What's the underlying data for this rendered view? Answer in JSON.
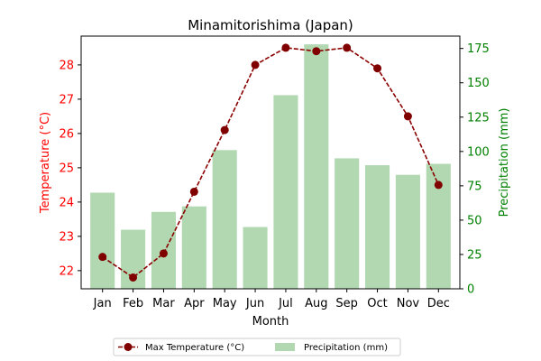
{
  "chart_data": {
    "type": "bar+line",
    "title": "Minamitorishima (Japan)",
    "xlabel": "Month",
    "categories": [
      "Jan",
      "Feb",
      "Mar",
      "Apr",
      "May",
      "Jun",
      "Jul",
      "Aug",
      "Sep",
      "Oct",
      "Nov",
      "Dec"
    ],
    "left_axis": {
      "label": "Temperature (°C)",
      "color": "#ff0000",
      "ylim": [
        21.47,
        28.84
      ],
      "ticks": [
        22,
        23,
        24,
        25,
        26,
        27,
        28
      ]
    },
    "right_axis": {
      "label": "Precipitation (mm)",
      "color": "#008000",
      "ylim": [
        0,
        184
      ],
      "ticks": [
        0,
        25,
        50,
        75,
        100,
        125,
        150,
        175
      ]
    },
    "series": [
      {
        "name": "Max Temperature (°C)",
        "type": "line",
        "axis": "left",
        "color": "#8b0000",
        "values": [
          22.4,
          21.8,
          22.5,
          24.3,
          26.1,
          28.0,
          28.5,
          28.4,
          28.5,
          27.9,
          26.5,
          24.5
        ]
      },
      {
        "name": "Precipitation (mm)",
        "type": "bar",
        "axis": "right",
        "color": "#b2d8b2",
        "values": [
          70,
          43,
          56,
          60,
          101,
          45,
          141,
          178,
          95,
          90,
          83,
          91
        ]
      }
    ],
    "legend": "bottom-center",
    "grid": false
  }
}
